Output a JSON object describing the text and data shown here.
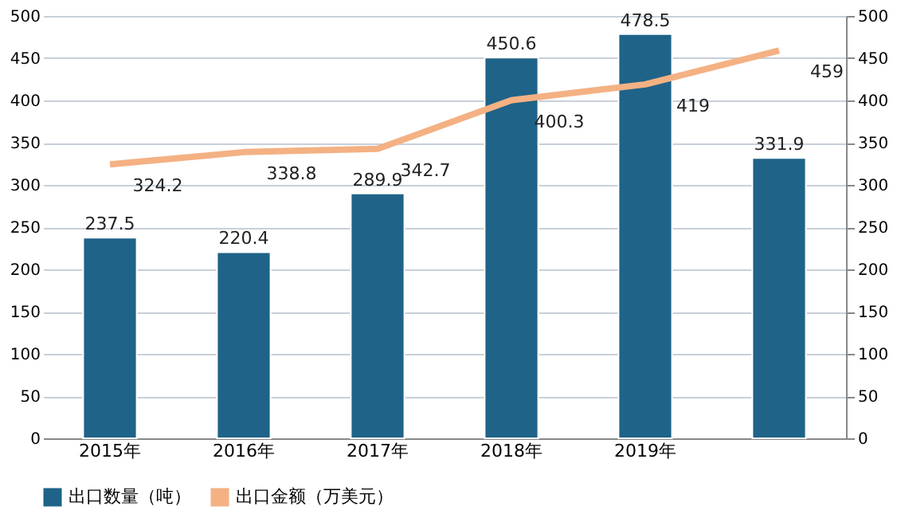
{
  "chart_data": {
    "type": "bar",
    "categories": [
      "2015年",
      "2016年",
      "2017年",
      "2018年",
      "2019年",
      null
    ],
    "series": [
      {
        "name": "出口数量（吨）",
        "color": "#1f6388",
        "values": [
          237.5,
          220.4,
          289.9,
          450.6,
          478.5,
          331.9
        ]
      },
      {
        "name": "出口金额（万美元）",
        "color": "#f4b183",
        "type": "line",
        "axis": "y2",
        "values": [
          324.2,
          338.8,
          342.7,
          400.3,
          419,
          459
        ]
      }
    ],
    "ylim": [
      0,
      500
    ],
    "yticks": [
      0,
      50,
      100,
      150,
      200,
      250,
      300,
      350,
      400,
      450,
      500
    ],
    "y2lim": [
      0,
      500
    ],
    "y2ticks": [
      0,
      50,
      100,
      150,
      200,
      250,
      300,
      350,
      400,
      450,
      500
    ],
    "grid": "y",
    "legend": "bottom",
    "data_labels": true,
    "marker": "none",
    "line_style": "solid"
  }
}
